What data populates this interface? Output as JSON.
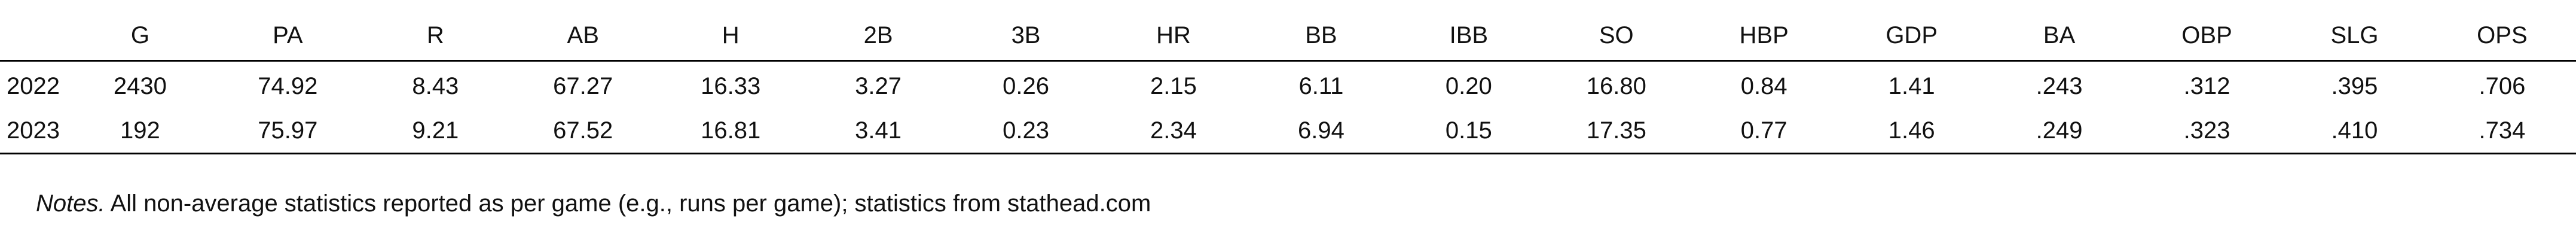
{
  "table": {
    "columns": [
      "G",
      "PA",
      "R",
      "AB",
      "H",
      "2B",
      "3B",
      "HR",
      "BB",
      "IBB",
      "SO",
      "HBP",
      "GDP",
      "BA",
      "OBP",
      "SLG",
      "OPS"
    ],
    "rows": [
      {
        "label": "2022",
        "values": [
          "2430",
          "74.92",
          "8.43",
          "67.27",
          "16.33",
          "3.27",
          "0.26",
          "2.15",
          "6.11",
          "0.20",
          "16.80",
          "0.84",
          "1.41",
          ".243",
          ".312",
          ".395",
          ".706"
        ]
      },
      {
        "label": "2023",
        "values": [
          "192",
          "75.97",
          "9.21",
          "67.52",
          "16.81",
          "3.41",
          "0.23",
          "2.34",
          "6.94",
          "0.15",
          "17.35",
          "0.77",
          "1.46",
          ".249",
          ".323",
          ".410",
          ".734"
        ]
      }
    ]
  },
  "notes": {
    "label": "Notes.",
    "text": " All non-average statistics reported as per game (e.g., runs per game); statistics from stathead.com"
  }
}
